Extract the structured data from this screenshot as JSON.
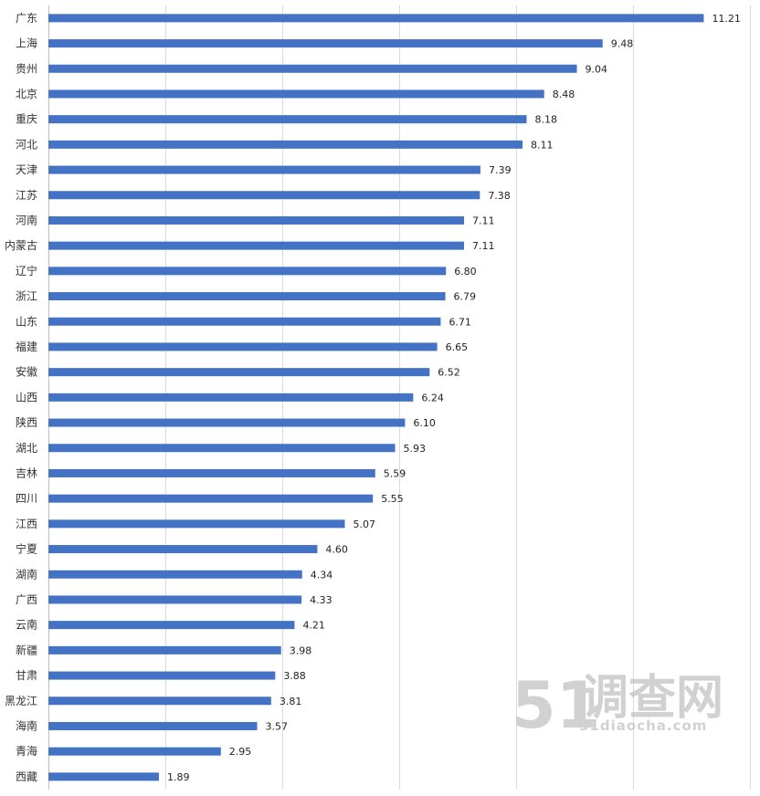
{
  "chart_data": {
    "type": "bar",
    "orientation": "horizontal",
    "categories": [
      "广东",
      "上海",
      "贵州",
      "北京",
      "重庆",
      "河北",
      "天津",
      "江苏",
      "河南",
      "内蒙古",
      "辽宁",
      "浙江",
      "山东",
      "福建",
      "安徽",
      "山西",
      "陕西",
      "湖北",
      "吉林",
      "四川",
      "江西",
      "宁夏",
      "湖南",
      "广西",
      "云南",
      "新疆",
      "甘肃",
      "黑龙江",
      "海南",
      "青海",
      "西藏"
    ],
    "values": [
      11.21,
      9.48,
      9.04,
      8.48,
      8.18,
      8.11,
      7.39,
      7.38,
      7.11,
      7.11,
      6.8,
      6.79,
      6.71,
      6.65,
      6.52,
      6.24,
      6.1,
      5.93,
      5.59,
      5.55,
      5.07,
      4.6,
      4.34,
      4.33,
      4.21,
      3.98,
      3.88,
      3.81,
      3.57,
      2.95,
      1.89
    ],
    "value_labels": [
      "11.21",
      "9.48",
      "9.04",
      "8.48",
      "8.18",
      "8.11",
      "7.39",
      "7.38",
      "7.11",
      "7.11",
      "6.80",
      "6.79",
      "6.71",
      "6.65",
      "6.52",
      "6.24",
      "6.10",
      "5.93",
      "5.59",
      "5.55",
      "5.07",
      "4.60",
      "4.34",
      "4.33",
      "4.21",
      "3.98",
      "3.88",
      "3.81",
      "3.57",
      "2.95",
      "1.89"
    ],
    "xlim": [
      0,
      12
    ],
    "grid_step": 2,
    "grid": true,
    "bar_color": "#4472c4"
  },
  "watermark": {
    "logo_number": "51",
    "logo_text": "调查网",
    "url": "51diaocha.com",
    "color": "#c9c9c9"
  }
}
